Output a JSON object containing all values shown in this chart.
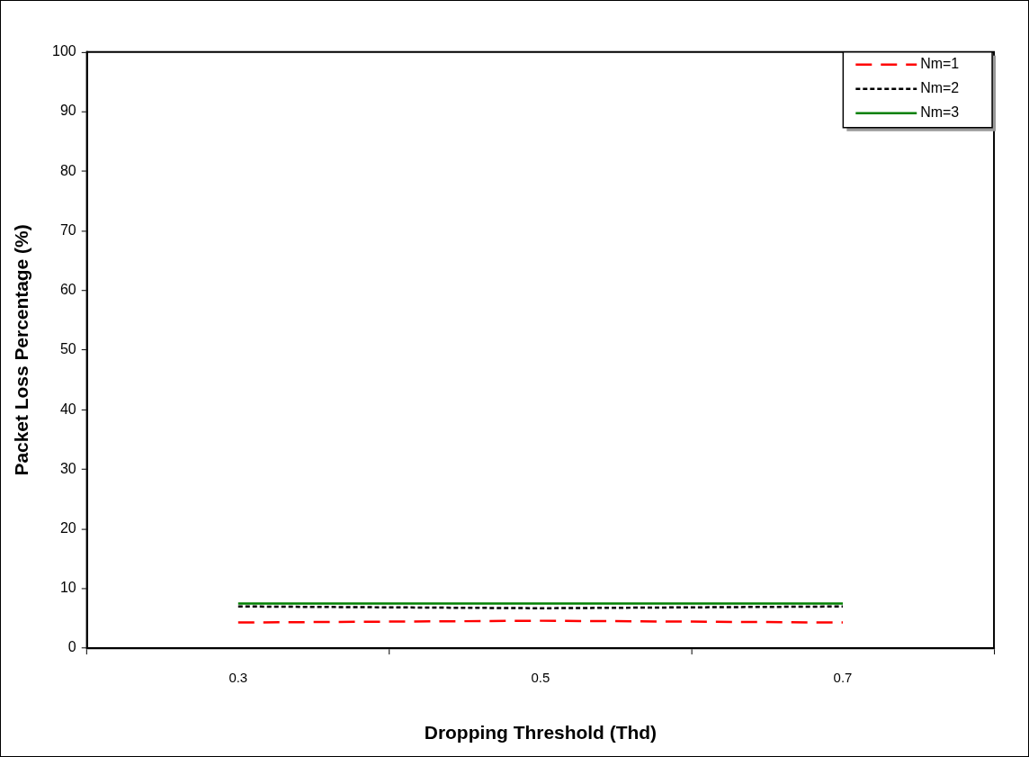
{
  "chart_data": {
    "type": "line",
    "xlabel": "Dropping Threshold (Thd)",
    "ylabel": "Packet Loss Percentage (%)",
    "categories": [
      "0.3",
      "0.5",
      "0.7"
    ],
    "series": [
      {
        "name": "Nm=1",
        "color": "#ff0000",
        "line_style": "dashed",
        "values": [
          4.3,
          4.6,
          4.3
        ]
      },
      {
        "name": "Nm=2",
        "color": "#000000",
        "line_style": "dotted",
        "values": [
          7.0,
          6.7,
          7.0
        ]
      },
      {
        "name": "Nm=3",
        "color": "#008000",
        "line_style": "solid",
        "values": [
          7.5,
          7.5,
          7.5
        ]
      }
    ],
    "ylim": [
      0,
      100
    ],
    "yticks": [
      0,
      10,
      20,
      30,
      40,
      50,
      60,
      70,
      80,
      90,
      100
    ],
    "grid": false,
    "legend": "top right",
    "marker": "none"
  }
}
